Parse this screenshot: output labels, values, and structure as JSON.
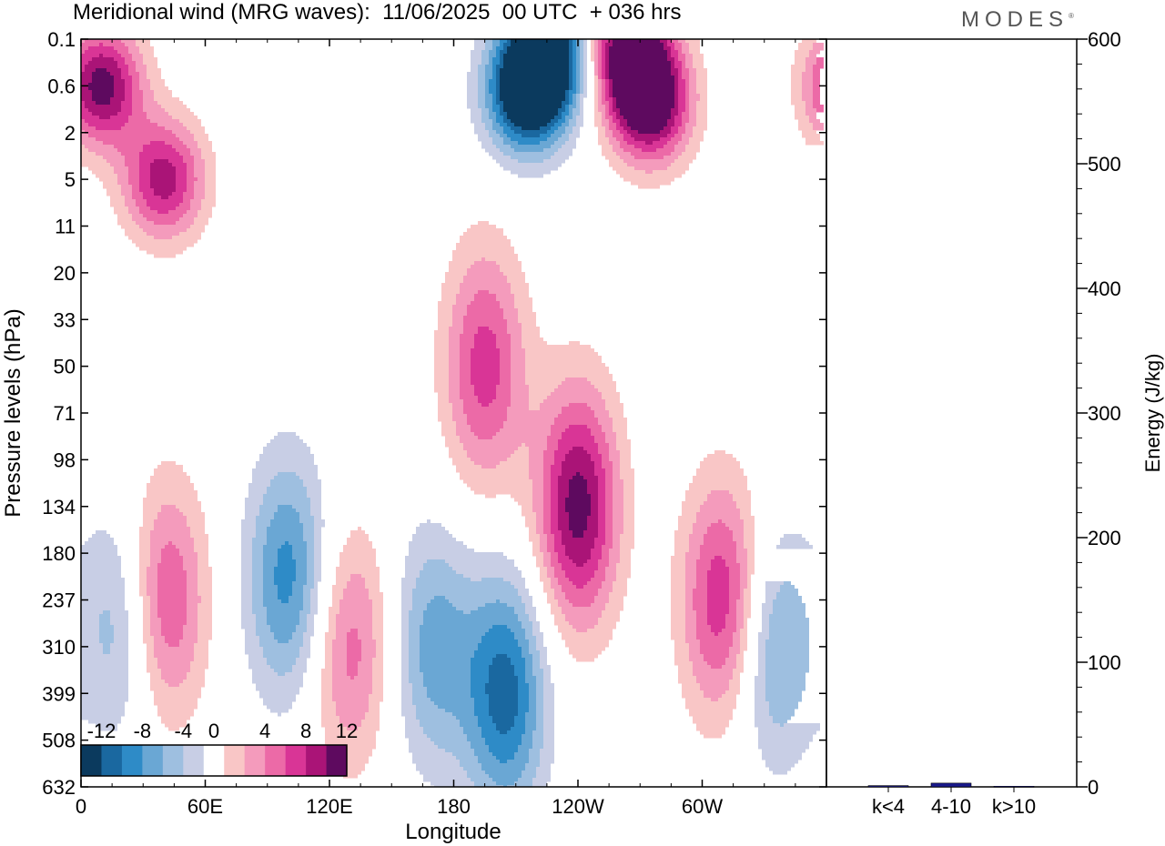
{
  "header": {
    "title": "Meridional wind (MRG waves):  11/06/2025  00 UTC  + 036 hrs",
    "brand": "MODES",
    "brand_mark": "®"
  },
  "chart_data": [
    {
      "type": "heatmap",
      "xlabel": "Longitude",
      "ylabel": "Pressure levels (hPa)",
      "x_ticks": [
        "0",
        "60E",
        "120E",
        "180",
        "120W",
        "60W"
      ],
      "x_tick_values": [
        0,
        60,
        120,
        180,
        240,
        300
      ],
      "xlim": [
        0,
        360
      ],
      "y_ticks": [
        "0.1",
        "0.6",
        "2",
        "5",
        "11",
        "20",
        "33",
        "50",
        "71",
        "98",
        "134",
        "180",
        "237",
        "310",
        "399",
        "508",
        "632"
      ],
      "colorbar": {
        "labels": [
          "-12",
          "-8",
          "-4",
          "0",
          "4",
          "8",
          "12"
        ],
        "levels": [
          -14,
          -12,
          -10,
          -8,
          -6,
          -4,
          -2,
          2,
          4,
          6,
          8,
          10,
          12,
          14
        ],
        "colors": [
          "#0b3a5e",
          "#1a68a0",
          "#2e8bc7",
          "#6aa7d4",
          "#9ebfe0",
          "#c8cee5",
          "#ffffff",
          "#f9c6c6",
          "#f49bbc",
          "#ec6aa7",
          "#d93596",
          "#aa1477",
          "#5e0a5f"
        ]
      },
      "field_description_components": [
        {
          "lon": 10,
          "lev": 1.0,
          "value": 13
        },
        {
          "lon": 40,
          "lev": 3.0,
          "value": 11
        },
        {
          "lon": 215,
          "lev": 1.2,
          "value": -14
        },
        {
          "lon": 225,
          "lev": 0.3,
          "value": -15
        },
        {
          "lon": 265,
          "lev": 0.2,
          "value": 14
        },
        {
          "lon": 275,
          "lev": 1.4,
          "value": 14
        },
        {
          "lon": 195,
          "lev": 7.0,
          "value": 9
        },
        {
          "lon": 205,
          "lev": 14.0,
          "value": -11
        },
        {
          "lon": 240,
          "lev": 10.0,
          "value": 13
        },
        {
          "lon": 170,
          "lev": 13.0,
          "value": -7
        },
        {
          "lon": 310,
          "lev": 12.0,
          "value": 10
        },
        {
          "lon": 335,
          "lev": 13.0,
          "value": -7
        },
        {
          "lon": 100,
          "lev": 11.5,
          "value": -9
        },
        {
          "lon": 40,
          "lev": 12.0,
          "value": 9
        },
        {
          "lon": 20,
          "lev": 12.5,
          "value": -6
        },
        {
          "lon": 130,
          "lev": 13.0,
          "value": 7
        }
      ]
    },
    {
      "type": "bar",
      "categories": [
        "k<4",
        "4-10",
        "k>10"
      ],
      "values": [
        1,
        3,
        0.5
      ],
      "ylabel": "Energy (J/kg)",
      "ylim": [
        0,
        600
      ],
      "y_ticks": [
        "0",
        "100",
        "200",
        "300",
        "400",
        "500",
        "600"
      ],
      "bar_color": "#1a1a8c"
    }
  ]
}
